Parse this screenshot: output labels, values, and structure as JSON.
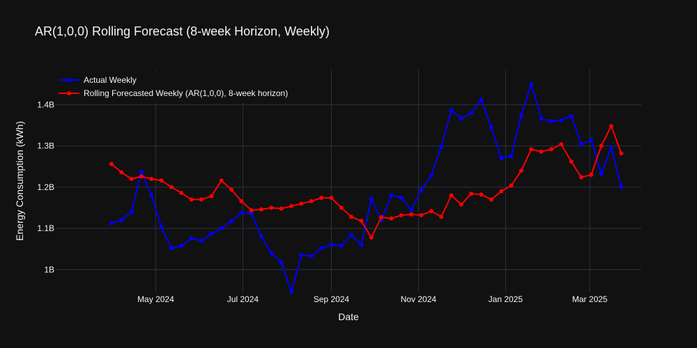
{
  "chart_data": {
    "type": "line",
    "title": "AR(1,0,0) Rolling Forecast (8-week Horizon, Weekly)",
    "xlabel": "Date",
    "ylabel": "Energy Consumption (kWh)",
    "x_ticks": [
      {
        "date": "2024-05-01",
        "label": "May 2024"
      },
      {
        "date": "2024-07-01",
        "label": "Jul 2024"
      },
      {
        "date": "2024-09-01",
        "label": "Sep 2024"
      },
      {
        "date": "2024-11-01",
        "label": "Nov 2024"
      },
      {
        "date": "2025-01-01",
        "label": "Jan 2025"
      },
      {
        "date": "2025-03-01",
        "label": "Mar 2025"
      }
    ],
    "y_ticks": [
      {
        "value": 1.0,
        "label": "1B"
      },
      {
        "value": 1.1,
        "label": "1.1B"
      },
      {
        "value": 1.2,
        "label": "1.2B"
      },
      {
        "value": 1.3,
        "label": "1.3B"
      },
      {
        "value": 1.4,
        "label": "1.4B"
      }
    ],
    "xlim": [
      "2024-02-21",
      "2025-04-06"
    ],
    "ylim": [
      0.945,
      1.485
    ],
    "y_unit": "B",
    "grid": true,
    "legend_position": "top-left",
    "x": [
      "2024-03-31",
      "2024-04-07",
      "2024-04-14",
      "2024-04-21",
      "2024-04-28",
      "2024-05-05",
      "2024-05-12",
      "2024-05-19",
      "2024-05-26",
      "2024-06-02",
      "2024-06-09",
      "2024-06-16",
      "2024-06-23",
      "2024-06-30",
      "2024-07-07",
      "2024-07-14",
      "2024-07-21",
      "2024-07-28",
      "2024-08-04",
      "2024-08-11",
      "2024-08-18",
      "2024-08-25",
      "2024-09-01",
      "2024-09-08",
      "2024-09-15",
      "2024-09-22",
      "2024-09-29",
      "2024-10-06",
      "2024-10-13",
      "2024-10-20",
      "2024-10-27",
      "2024-11-03",
      "2024-11-10",
      "2024-11-17",
      "2024-11-24",
      "2024-12-01",
      "2024-12-08",
      "2024-12-15",
      "2024-12-22",
      "2024-12-29",
      "2025-01-05",
      "2025-01-12",
      "2025-01-19",
      "2025-01-26",
      "2025-02-02",
      "2025-02-09",
      "2025-02-16",
      "2025-02-23",
      "2025-03-02",
      "2025-03-09",
      "2025-03-16",
      "2025-03-23"
    ],
    "series": [
      {
        "name": "Actual Weekly",
        "color": "#0000ff",
        "values": [
          1.113,
          1.12,
          1.14,
          1.238,
          1.18,
          1.103,
          1.052,
          1.058,
          1.076,
          1.07,
          1.087,
          1.1,
          1.117,
          1.138,
          1.136,
          1.08,
          1.04,
          1.017,
          0.946,
          1.035,
          1.033,
          1.052,
          1.06,
          1.058,
          1.084,
          1.06,
          1.172,
          1.12,
          1.18,
          1.175,
          1.145,
          1.194,
          1.228,
          1.298,
          1.386,
          1.366,
          1.38,
          1.412,
          1.344,
          1.27,
          1.275,
          1.374,
          1.45,
          1.366,
          1.36,
          1.362,
          1.372,
          1.304,
          1.314,
          1.232,
          1.296,
          1.2
        ]
      },
      {
        "name": "Rolling Forecasted Weekly (AR(1,0,0), 8-week horizon)",
        "color": "#ff0000",
        "values": [
          1.256,
          1.236,
          1.22,
          1.226,
          1.22,
          1.216,
          1.2,
          1.186,
          1.17,
          1.17,
          1.178,
          1.216,
          1.194,
          1.166,
          1.144,
          1.146,
          1.15,
          1.148,
          1.154,
          1.16,
          1.166,
          1.174,
          1.174,
          1.15,
          1.128,
          1.118,
          1.078,
          1.127,
          1.124,
          1.132,
          1.134,
          1.132,
          1.142,
          1.128,
          1.18,
          1.158,
          1.184,
          1.182,
          1.17,
          1.19,
          1.204,
          1.24,
          1.292,
          1.286,
          1.292,
          1.304,
          1.262,
          1.224,
          1.23,
          1.3,
          1.348,
          1.282
        ]
      }
    ]
  }
}
